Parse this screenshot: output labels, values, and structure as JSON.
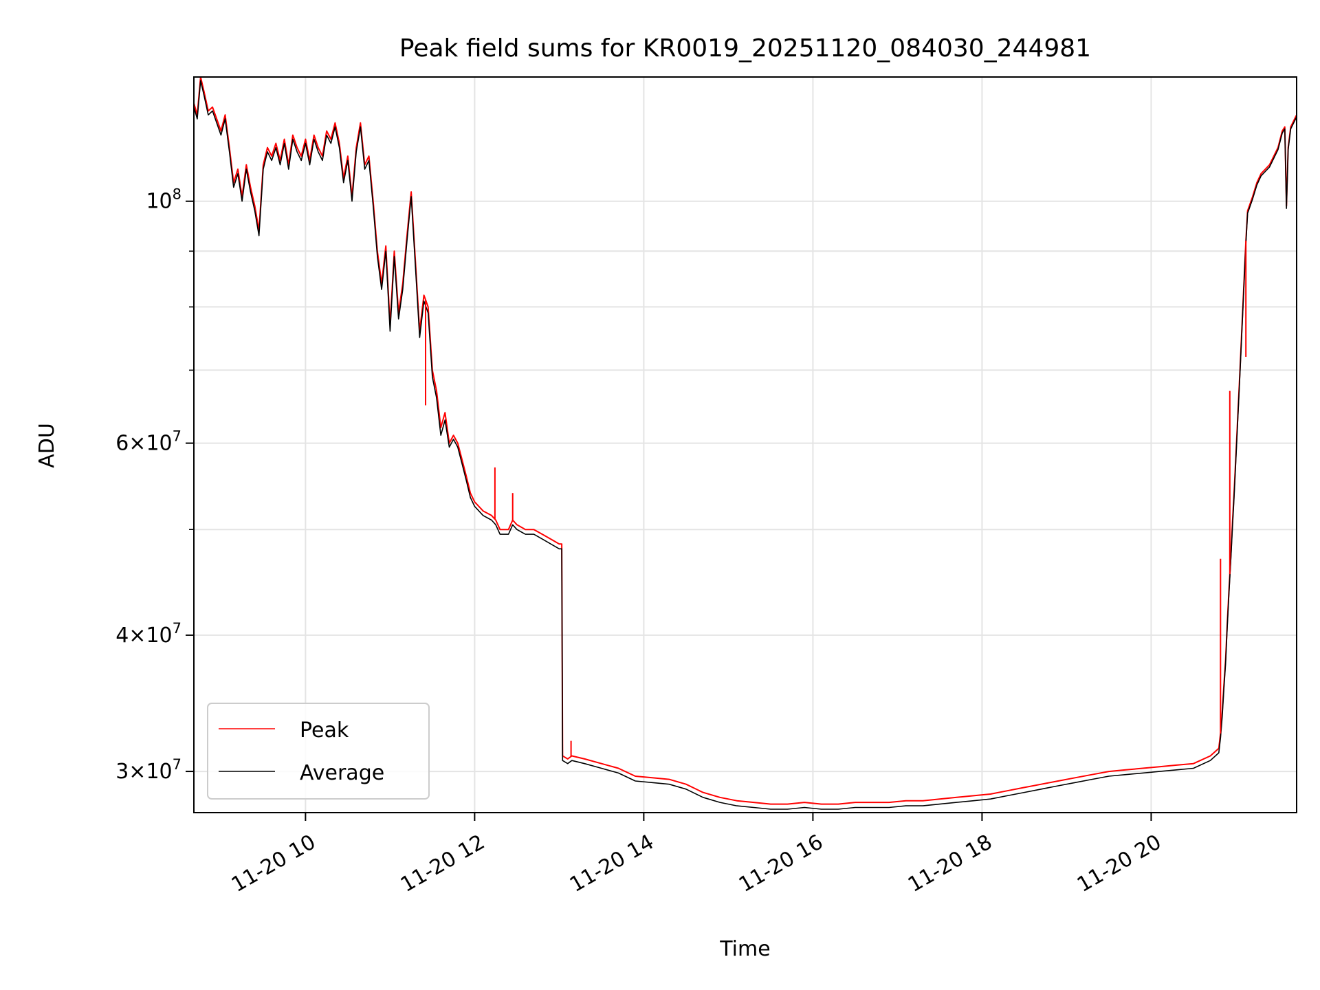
{
  "chart_data": {
    "type": "line",
    "title": "Peak field sums for KR0019_20251120_084030_244981",
    "xlabel": "Time",
    "ylabel": "ADU",
    "x_unit": "hours since 2025-11-20 00:00",
    "xlim": [
      8.68,
      21.72
    ],
    "ylim": [
      27500000,
      130000000
    ],
    "y_scale": "log",
    "grid": true,
    "legend_position": "lower-left",
    "x_ticks": [
      {
        "value": 10,
        "label": "11-20 10"
      },
      {
        "value": 12,
        "label": "11-20 12"
      },
      {
        "value": 14,
        "label": "11-20 14"
      },
      {
        "value": 16,
        "label": "11-20 16"
      },
      {
        "value": 18,
        "label": "11-20 18"
      },
      {
        "value": 20,
        "label": "11-20 20"
      }
    ],
    "y_ticks_major": [
      {
        "value": 30000000,
        "mantissa": "3",
        "exponent": "7"
      },
      {
        "value": 40000000,
        "mantissa": "4",
        "exponent": "7"
      },
      {
        "value": 60000000,
        "mantissa": "6",
        "exponent": "7"
      },
      {
        "value": 100000000,
        "mantissa": "",
        "exponent": "8"
      }
    ],
    "y_ticks_minor": [
      50000000,
      70000000,
      80000000,
      90000000
    ],
    "series": [
      {
        "name": "Peak",
        "color": "#ff0000",
        "x": [
          8.68,
          8.72,
          8.76,
          8.8,
          8.85,
          8.9,
          8.95,
          9.0,
          9.05,
          9.1,
          9.15,
          9.2,
          9.25,
          9.3,
          9.35,
          9.4,
          9.45,
          9.5,
          9.55,
          9.6,
          9.65,
          9.7,
          9.75,
          9.8,
          9.85,
          9.9,
          9.95,
          10.0,
          10.05,
          10.1,
          10.15,
          10.2,
          10.25,
          10.3,
          10.35,
          10.4,
          10.45,
          10.5,
          10.55,
          10.6,
          10.65,
          10.7,
          10.75,
          10.8,
          10.85,
          10.9,
          10.95,
          11.0,
          11.05,
          11.1,
          11.15,
          11.2,
          11.25,
          11.3,
          11.35,
          11.4,
          11.45,
          11.5,
          11.55,
          11.6,
          11.65,
          11.7,
          11.75,
          11.8,
          11.85,
          11.9,
          11.95,
          12.0,
          12.1,
          12.2,
          12.25,
          12.3,
          12.4,
          12.45,
          12.5,
          12.6,
          12.7,
          12.8,
          12.9,
          13.0,
          13.03,
          13.04,
          13.1,
          13.15,
          13.3,
          13.5,
          13.7,
          13.9,
          14.1,
          14.3,
          14.5,
          14.7,
          14.9,
          15.1,
          15.3,
          15.5,
          15.7,
          15.9,
          16.1,
          16.3,
          16.5,
          16.7,
          16.9,
          17.1,
          17.3,
          17.5,
          17.7,
          17.9,
          18.1,
          18.3,
          18.5,
          18.7,
          18.9,
          19.1,
          19.3,
          19.5,
          19.7,
          19.9,
          20.1,
          20.3,
          20.5,
          20.7,
          20.8,
          20.82,
          20.84,
          20.86,
          20.88,
          20.9,
          20.92,
          20.94,
          20.96,
          20.98,
          21.0,
          21.05,
          21.1,
          21.12,
          21.14,
          21.2,
          21.25,
          21.3,
          21.4,
          21.5,
          21.55,
          21.58,
          21.6,
          21.62,
          21.65,
          21.72
        ],
        "y": [
          123000000,
          120000000,
          130000000,
          126000000,
          121000000,
          122000000,
          119000000,
          116000000,
          120000000,
          112000000,
          104000000,
          107000000,
          101000000,
          108000000,
          103000000,
          99000000,
          94000000,
          108000000,
          112000000,
          110000000,
          113000000,
          109000000,
          114000000,
          108000000,
          115000000,
          112000000,
          110000000,
          114000000,
          109000000,
          115000000,
          112000000,
          110000000,
          116000000,
          114000000,
          118000000,
          113000000,
          105000000,
          110000000,
          101000000,
          112000000,
          118000000,
          108000000,
          110000000,
          100000000,
          90000000,
          84000000,
          91000000,
          77000000,
          90000000,
          79000000,
          84000000,
          93000000,
          102000000,
          88000000,
          76000000,
          82000000,
          80000000,
          70000000,
          67000000,
          62000000,
          64000000,
          60000000,
          61000000,
          60000000,
          58000000,
          56000000,
          54000000,
          53000000,
          52000000,
          51500000,
          51000000,
          50000000,
          50000000,
          51000000,
          50500000,
          50000000,
          50000000,
          49500000,
          49000000,
          48500000,
          48500000,
          31000000,
          30800000,
          31000000,
          30800000,
          30500000,
          30200000,
          29700000,
          29600000,
          29500000,
          29200000,
          28700000,
          28400000,
          28200000,
          28100000,
          28000000,
          28000000,
          28100000,
          28000000,
          28000000,
          28100000,
          28100000,
          28100000,
          28200000,
          28200000,
          28300000,
          28400000,
          28500000,
          28600000,
          28800000,
          29000000,
          29200000,
          29400000,
          29600000,
          29800000,
          30000000,
          30100000,
          30200000,
          30300000,
          30400000,
          30500000,
          31000000,
          31500000,
          32500000,
          34000000,
          36000000,
          38000000,
          41000000,
          44000000,
          47000000,
          50500000,
          54000000,
          58000000,
          70000000,
          85000000,
          92000000,
          98000000,
          101000000,
          104000000,
          106000000,
          108000000,
          112000000,
          116000000,
          117000000,
          99000000,
          112000000,
          117000000,
          120000000
        ]
      },
      {
        "name": "Average",
        "color": "#000000",
        "x": [
          8.68,
          8.72,
          8.76,
          8.8,
          8.85,
          8.9,
          8.95,
          9.0,
          9.05,
          9.1,
          9.15,
          9.2,
          9.25,
          9.3,
          9.35,
          9.4,
          9.45,
          9.5,
          9.55,
          9.6,
          9.65,
          9.7,
          9.75,
          9.8,
          9.85,
          9.9,
          9.95,
          10.0,
          10.05,
          10.1,
          10.15,
          10.2,
          10.25,
          10.3,
          10.35,
          10.4,
          10.45,
          10.5,
          10.55,
          10.6,
          10.65,
          10.7,
          10.75,
          10.8,
          10.85,
          10.9,
          10.95,
          11.0,
          11.05,
          11.1,
          11.15,
          11.2,
          11.25,
          11.3,
          11.35,
          11.4,
          11.45,
          11.5,
          11.55,
          11.6,
          11.65,
          11.7,
          11.75,
          11.8,
          11.85,
          11.9,
          11.95,
          12.0,
          12.1,
          12.2,
          12.25,
          12.3,
          12.4,
          12.45,
          12.5,
          12.6,
          12.7,
          12.8,
          12.9,
          13.0,
          13.03,
          13.04,
          13.1,
          13.15,
          13.3,
          13.5,
          13.7,
          13.9,
          14.1,
          14.3,
          14.5,
          14.7,
          14.9,
          15.1,
          15.3,
          15.5,
          15.7,
          15.9,
          16.1,
          16.3,
          16.5,
          16.7,
          16.9,
          17.1,
          17.3,
          17.5,
          17.7,
          17.9,
          18.1,
          18.3,
          18.5,
          18.7,
          18.9,
          19.1,
          19.3,
          19.5,
          19.7,
          19.9,
          20.1,
          20.3,
          20.5,
          20.7,
          20.8,
          20.82,
          20.84,
          20.86,
          20.88,
          20.9,
          20.92,
          20.94,
          20.96,
          20.98,
          21.0,
          21.05,
          21.1,
          21.12,
          21.14,
          21.2,
          21.25,
          21.3,
          21.4,
          21.5,
          21.55,
          21.58,
          21.6,
          21.62,
          21.65,
          21.72
        ],
        "y": [
          122000000,
          119000000,
          129000000,
          125000000,
          120000000,
          121000000,
          118000000,
          115000000,
          119000000,
          111000000,
          103000000,
          106000000,
          100000000,
          107000000,
          102000000,
          98000000,
          93000000,
          107000000,
          111000000,
          109000000,
          112000000,
          108000000,
          113000000,
          107000000,
          114000000,
          111000000,
          109000000,
          113000000,
          108000000,
          114000000,
          111000000,
          109000000,
          115000000,
          113000000,
          117000000,
          112000000,
          104000000,
          109000000,
          100000000,
          111000000,
          117000000,
          107000000,
          109000000,
          99000000,
          89000000,
          83000000,
          90000000,
          76000000,
          89000000,
          78000000,
          83000000,
          92000000,
          101000000,
          87000000,
          75000000,
          81000000,
          79000000,
          69000000,
          66000000,
          61000000,
          63000000,
          59500000,
          60500000,
          59500000,
          57500000,
          55500000,
          53500000,
          52500000,
          51500000,
          51000000,
          50500000,
          49500000,
          49500000,
          50500000,
          50000000,
          49500000,
          49500000,
          49000000,
          48500000,
          48000000,
          48000000,
          30700000,
          30500000,
          30700000,
          30500000,
          30200000,
          29900000,
          29400000,
          29300000,
          29200000,
          28900000,
          28400000,
          28100000,
          27900000,
          27800000,
          27700000,
          27700000,
          27800000,
          27700000,
          27700000,
          27800000,
          27800000,
          27800000,
          27900000,
          27900000,
          28000000,
          28100000,
          28200000,
          28300000,
          28500000,
          28700000,
          28900000,
          29100000,
          29300000,
          29500000,
          29700000,
          29800000,
          29900000,
          30000000,
          30100000,
          30200000,
          30700000,
          31200000,
          32200000,
          33700000,
          35700000,
          37700000,
          40700000,
          43700000,
          46700000,
          50000000,
          53500000,
          57500000,
          69500000,
          84500000,
          91500000,
          97500000,
          100500000,
          103500000,
          105500000,
          107500000,
          111500000,
          115500000,
          116500000,
          98500000,
          111500000,
          116500000,
          119500000
        ]
      }
    ],
    "spikes": [
      {
        "series": "Peak",
        "x": 11.42,
        "y": 65000000
      },
      {
        "series": "Peak",
        "x": 12.24,
        "y": 57000000
      },
      {
        "series": "Peak",
        "x": 12.45,
        "y": 54000000
      },
      {
        "series": "Peak",
        "x": 13.14,
        "y": 32000000
      },
      {
        "series": "Peak",
        "x": 20.82,
        "y": 47000000
      },
      {
        "series": "Peak",
        "x": 20.93,
        "y": 67000000
      },
      {
        "series": "Peak",
        "x": 21.12,
        "y": 72000000
      }
    ]
  }
}
